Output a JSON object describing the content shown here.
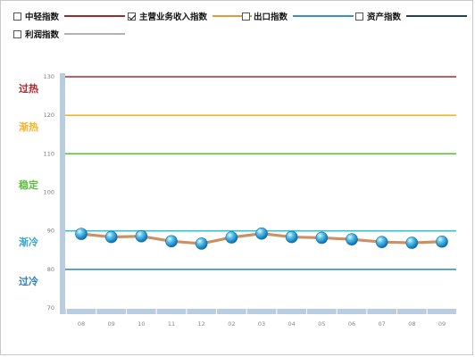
{
  "legend": [
    {
      "name": "中轻指数",
      "checked": false,
      "color": "#9b2a2a"
    },
    {
      "name": "主营业务收入指数",
      "checked": true,
      "color": "#e39a3c"
    },
    {
      "name": "出口指数",
      "checked": false,
      "color": "#3b8fc7"
    },
    {
      "name": "资产指数",
      "checked": false,
      "color": "#1e3f6b"
    },
    {
      "name": "利润指数",
      "checked": false,
      "color": "#b3b3b3"
    }
  ],
  "zones": [
    {
      "label": "过热",
      "color": "#b0262b",
      "threshold": 130
    },
    {
      "label": "渐热",
      "color": "#f2b52b",
      "threshold": 120
    },
    {
      "label": "稳定",
      "color": "#5bbf3a",
      "threshold": 110
    },
    {
      "label": "渐冷",
      "color": "#35a6cf",
      "threshold": 90
    },
    {
      "label": "过冷",
      "color": "#2f7fbf",
      "threshold": 80
    }
  ],
  "chart_data": {
    "type": "line",
    "categories": [
      "08",
      "09",
      "10",
      "11",
      "12",
      "02",
      "03",
      "04",
      "05",
      "06",
      "07",
      "08",
      "09"
    ],
    "series": [
      {
        "name": "主营业务收入指数",
        "values": [
          89.2,
          88.4,
          88.6,
          87.3,
          86.7,
          88.3,
          89.3,
          88.4,
          88.2,
          87.8,
          87.1,
          86.9,
          87.2
        ]
      }
    ],
    "y_ticks": [
      70,
      80,
      90,
      100,
      110,
      120,
      130
    ],
    "ylim": [
      70,
      130
    ],
    "reference_lines": [
      {
        "value": 130,
        "color": "#b0262b"
      },
      {
        "value": 120,
        "color": "#f2b52b"
      },
      {
        "value": 110,
        "color": "#5bbf3a"
      },
      {
        "value": 90,
        "color": "#35c1cf"
      },
      {
        "value": 80,
        "color": "#3b8fc7"
      }
    ],
    "line_color": "#d9843c",
    "marker_color": "#1a9dd6",
    "grid": false
  }
}
